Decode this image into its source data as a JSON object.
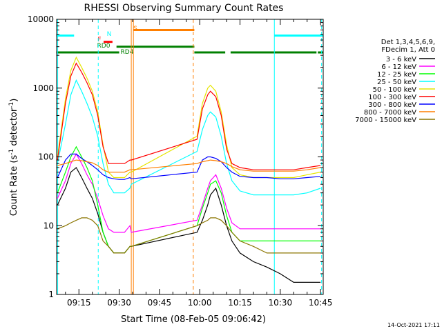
{
  "chart_data": {
    "type": "line",
    "title": "RHESSI Observing Summary Count Rates",
    "xlabel": "Start Time (08-Feb-05 09:06:42)",
    "ylabel_main": "Count Rate (s",
    "ylabel_sup": "-1",
    "ylabel_mid": " detector",
    "ylabel_end": ")",
    "x_start_min": 546.7,
    "x_end_min": 646.0,
    "ylim": [
      1,
      10000
    ],
    "y_scale": "log",
    "x_ticks": [
      {
        "label": "09:15",
        "min": 555
      },
      {
        "label": "09:30",
        "min": 570
      },
      {
        "label": "09:45",
        "min": 585
      },
      {
        "label": "10:00",
        "min": 600
      },
      {
        "label": "10:15",
        "min": 615
      },
      {
        "label": "10:30",
        "min": 630
      },
      {
        "label": "10:45",
        "min": 645
      }
    ],
    "y_ticks": [
      {
        "label": "1",
        "value": 1
      },
      {
        "label": "10",
        "value": 10
      },
      {
        "label": "100",
        "value": 100
      },
      {
        "label": "1000",
        "value": 1000
      },
      {
        "label": "10000",
        "value": 10000
      }
    ],
    "legend_header": [
      "Det 1,3,4,5,6,9,",
      "FDecim 1, Att 0"
    ],
    "legend_position": "right",
    "timestamp": "14-Oct-2021 17:11",
    "flag_labels": {
      "night": "N",
      "saa": "S",
      "flare": "F",
      "rd0": "RD0",
      "rd4": "RD4"
    },
    "flags": {
      "night": {
        "color": "#00ffff",
        "intervals": [
          [
            546.7,
            553.2
          ],
          [
            627.8,
            646.0
          ]
        ],
        "value": 5800
      },
      "saa": {
        "color": "#ff7f00",
        "intervals": [
          [
            575.3,
            598.0
          ]
        ],
        "value": 7000
      },
      "flare": {
        "color": "#ff0000",
        "intervals": [
          [
            564.2,
            567.5
          ]
        ],
        "value": 4700
      },
      "rd0": {
        "color": "#008000",
        "intervals": [
          [
            569.0,
            598.0
          ]
        ],
        "value": 4000
      },
      "rd4": {
        "color": "#008000",
        "intervals": [
          [
            546.7,
            570.0
          ],
          [
            598.0,
            609.5
          ],
          [
            611.5,
            643.5
          ],
          [
            644.0,
            646.0
          ]
        ],
        "value": 3300
      }
    },
    "vlines": [
      {
        "x": 547.1,
        "color": "#00ffff",
        "style": "solid"
      },
      {
        "x": 562.2,
        "color": "#00ffff",
        "style": "dashed"
      },
      {
        "x": 574.5,
        "color": "#ff7f00",
        "style": "solid"
      },
      {
        "x": 575.3,
        "color": "#ff7f00",
        "style": "solid"
      },
      {
        "x": 597.6,
        "color": "#ff7f00",
        "style": "dashed"
      },
      {
        "x": 627.8,
        "color": "#00ffff",
        "style": "solid"
      },
      {
        "x": 645.4,
        "color": "#00ffff",
        "style": "dashed"
      }
    ],
    "series": [
      {
        "name": "3 - 6 keV",
        "color": "#000000",
        "x": [
          547,
          550,
          552,
          554,
          556,
          558,
          560,
          562,
          564,
          566,
          568,
          570,
          572,
          574,
          574.5,
          599,
          601,
          603,
          604,
          606,
          608,
          610,
          612,
          615,
          620,
          625,
          630,
          635,
          640,
          645
        ],
        "y": [
          20,
          35,
          60,
          70,
          50,
          35,
          25,
          15,
          8,
          5,
          4,
          4,
          4,
          5,
          5,
          8,
          12,
          20,
          28,
          35,
          20,
          10,
          6,
          4,
          3,
          2.5,
          2,
          1.5,
          1.5,
          1.5
        ]
      },
      {
        "name": "6 - 12 keV",
        "color": "#ff00ff",
        "x": [
          547,
          550,
          552,
          554,
          556,
          558,
          560,
          562,
          564,
          566,
          568,
          570,
          572,
          574,
          574.5,
          599,
          601,
          603,
          604,
          606,
          608,
          610,
          612,
          615,
          620,
          625,
          630,
          635,
          640,
          645
        ],
        "y": [
          25,
          45,
          80,
          110,
          80,
          55,
          40,
          25,
          14,
          9,
          8,
          8,
          8,
          10,
          8,
          12,
          20,
          35,
          45,
          55,
          35,
          18,
          11,
          9,
          9,
          9,
          9,
          9,
          9,
          9
        ]
      },
      {
        "name": "12 - 25 keV",
        "color": "#00ff00",
        "x": [
          547,
          550,
          552,
          554,
          556,
          558,
          560,
          562,
          564,
          566,
          568,
          570,
          572,
          574,
          574.5,
          599,
          601,
          603,
          604,
          606,
          608,
          610,
          612,
          615,
          620,
          625,
          630,
          635,
          640,
          645
        ],
        "y": [
          30,
          60,
          100,
          140,
          100,
          70,
          45,
          20,
          8,
          5,
          4,
          4,
          4,
          5,
          5,
          10,
          18,
          30,
          40,
          45,
          30,
          14,
          8,
          6,
          6,
          6,
          6,
          6,
          6,
          6
        ]
      },
      {
        "name": "25 - 50 keV",
        "color": "#00ffff",
        "x": [
          547,
          550,
          552,
          554,
          556,
          558,
          560,
          562,
          564,
          566,
          568,
          570,
          572,
          574,
          574.5,
          599,
          601,
          603,
          604,
          606,
          608,
          610,
          612,
          615,
          620,
          625,
          630,
          635,
          640,
          645
        ],
        "y": [
          80,
          300,
          800,
          1300,
          900,
          600,
          380,
          200,
          80,
          40,
          30,
          30,
          30,
          35,
          40,
          120,
          250,
          400,
          450,
          380,
          200,
          80,
          45,
          32,
          28,
          28,
          28,
          28,
          30,
          35
        ]
      },
      {
        "name": "50 - 100 keV",
        "color": "#e6e600",
        "x": [
          547,
          550,
          552,
          554,
          556,
          558,
          560,
          562,
          564,
          566,
          568,
          570,
          572,
          574,
          574.5,
          599,
          601,
          603,
          604,
          606,
          608,
          610,
          612,
          615,
          620,
          625,
          630,
          635,
          640,
          645
        ],
        "y": [
          100,
          700,
          1800,
          2800,
          2000,
          1400,
          900,
          450,
          150,
          60,
          50,
          50,
          50,
          60,
          60,
          200,
          600,
          1000,
          1100,
          900,
          450,
          150,
          70,
          55,
          50,
          50,
          50,
          50,
          55,
          60
        ]
      },
      {
        "name": "100 - 300 keV",
        "color": "#ff0000",
        "x": [
          547,
          550,
          552,
          554,
          556,
          558,
          560,
          562,
          564,
          566,
          568,
          570,
          572,
          574,
          574.5,
          599,
          601,
          603,
          604,
          606,
          608,
          610,
          612,
          615,
          620,
          625,
          630,
          635,
          640,
          645
        ],
        "y": [
          90,
          600,
          1500,
          2300,
          1700,
          1200,
          800,
          400,
          140,
          80,
          80,
          80,
          80,
          90,
          90,
          180,
          500,
          800,
          900,
          750,
          400,
          130,
          80,
          70,
          65,
          65,
          65,
          65,
          70,
          75
        ]
      },
      {
        "name": "300 - 800 keV",
        "color": "#0000ff",
        "x": [
          547,
          550,
          552,
          554,
          556,
          558,
          560,
          562,
          564,
          566,
          568,
          570,
          572,
          574,
          574.5,
          599,
          601,
          603,
          604,
          606,
          608,
          610,
          612,
          615,
          620,
          625,
          630,
          635,
          640,
          645
        ],
        "y": [
          50,
          90,
          110,
          110,
          95,
          85,
          75,
          65,
          55,
          50,
          48,
          47,
          47,
          50,
          48,
          60,
          90,
          100,
          100,
          95,
          85,
          70,
          60,
          52,
          50,
          50,
          48,
          48,
          50,
          52
        ]
      },
      {
        "name": "800 - 7000 keV",
        "color": "#ff7f00",
        "x": [
          547,
          550,
          552,
          554,
          556,
          558,
          560,
          562,
          564,
          566,
          568,
          570,
          572,
          574,
          574.5,
          599,
          601,
          603,
          604,
          606,
          608,
          610,
          612,
          615,
          620,
          625,
          630,
          635,
          640,
          645
        ],
        "y": [
          75,
          80,
          85,
          90,
          88,
          85,
          82,
          75,
          65,
          60,
          60,
          60,
          60,
          65,
          65,
          80,
          85,
          88,
          90,
          88,
          85,
          80,
          72,
          65,
          62,
          62,
          62,
          62,
          65,
          70
        ]
      },
      {
        "name": "7000 - 15000 keV",
        "color": "#8b7500",
        "x": [
          547,
          550,
          552,
          554,
          556,
          558,
          560,
          562,
          564,
          566,
          568,
          570,
          572,
          574,
          574.5,
          599,
          601,
          603,
          604,
          606,
          608,
          610,
          612,
          615,
          620,
          625,
          630,
          635,
          640,
          645
        ],
        "y": [
          9,
          10,
          11,
          12,
          13,
          13,
          12,
          10,
          6,
          5,
          4,
          4,
          4,
          5,
          5,
          10,
          11,
          12,
          13,
          13,
          12,
          10,
          8,
          6,
          5,
          4,
          4,
          4,
          4,
          4
        ]
      }
    ]
  }
}
